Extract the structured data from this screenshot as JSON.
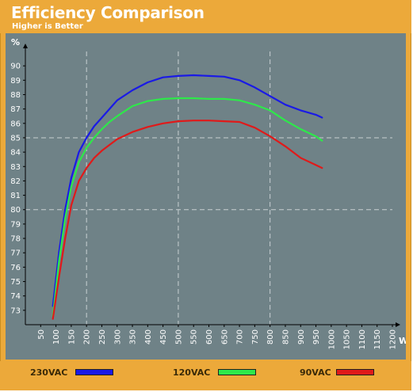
{
  "chart_data": {
    "type": "line",
    "title": "Efficiency Comparison",
    "subtitle": "Higher is Better",
    "xlabel": "W",
    "ylabel": "%",
    "xlim": [
      0,
      1200
    ],
    "ylim": [
      72,
      91
    ],
    "x_ticks": [
      "50",
      "100",
      "150",
      "200",
      "250",
      "300",
      "350",
      "400",
      "450",
      "500",
      "550",
      "600",
      "650",
      "700",
      "750",
      "800",
      "850",
      "900",
      "950",
      "1000",
      "1050",
      "1100",
      "1150",
      "1200"
    ],
    "y_ticks": [
      "73",
      "74",
      "75",
      "76",
      "77",
      "78",
      "79",
      "80",
      "81",
      "82",
      "83",
      "84",
      "85",
      "86",
      "87",
      "88",
      "89",
      "90"
    ],
    "grid": {
      "vertical_dashed_at": [
        200,
        500,
        800
      ],
      "horizontal_dashed_at": [
        80,
        85
      ]
    },
    "series": [
      {
        "name": "230VAC",
        "color": "#1a1ae6",
        "x": [
          90,
          110,
          130,
          150,
          175,
          200,
          225,
          250,
          275,
          300,
          350,
          400,
          450,
          500,
          550,
          600,
          650,
          700,
          750,
          800,
          850,
          900,
          950,
          970
        ],
        "y": [
          73.3,
          77.0,
          80.0,
          82.2,
          84.0,
          85.0,
          85.8,
          86.4,
          87.0,
          87.6,
          88.3,
          88.85,
          89.2,
          89.3,
          89.35,
          89.3,
          89.25,
          89.0,
          88.5,
          87.9,
          87.3,
          86.9,
          86.6,
          86.4
        ]
      },
      {
        "name": "120VAC",
        "color": "#2ee84a",
        "x": [
          90,
          110,
          130,
          150,
          175,
          200,
          225,
          250,
          275,
          300,
          350,
          400,
          450,
          500,
          550,
          600,
          650,
          700,
          750,
          800,
          850,
          900,
          950,
          970
        ],
        "y": [
          72.6,
          76.4,
          79.4,
          81.6,
          83.3,
          84.3,
          85.0,
          85.6,
          86.1,
          86.5,
          87.2,
          87.55,
          87.7,
          87.75,
          87.75,
          87.7,
          87.7,
          87.6,
          87.3,
          86.9,
          86.2,
          85.6,
          85.1,
          84.8
        ]
      },
      {
        "name": "90VAC",
        "color": "#e01a1a",
        "x": [
          90,
          110,
          130,
          150,
          175,
          200,
          225,
          250,
          275,
          300,
          350,
          400,
          450,
          500,
          550,
          600,
          650,
          700,
          750,
          800,
          850,
          900,
          950,
          970
        ],
        "y": [
          72.4,
          75.3,
          78.0,
          80.3,
          82.0,
          82.9,
          83.6,
          84.1,
          84.5,
          84.9,
          85.4,
          85.75,
          86.0,
          86.15,
          86.2,
          86.2,
          86.15,
          86.1,
          85.7,
          85.1,
          84.4,
          83.6,
          83.1,
          82.9
        ]
      }
    ]
  },
  "colors": {
    "header_bg": "#eca93a",
    "plot_bg": "#6f8287",
    "axis_text": "#ffffff",
    "grid_dashed": "#c8d0d2"
  }
}
